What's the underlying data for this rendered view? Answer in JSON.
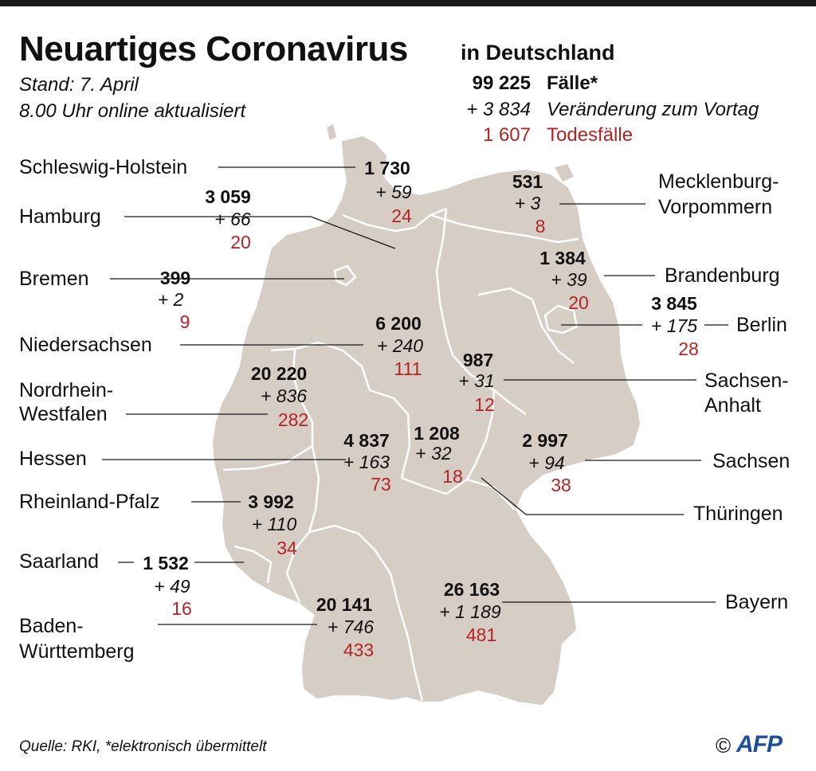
{
  "title": "Neuartiges Coronavirus",
  "subtitle": "in Deutschland",
  "stand": "Stand: 7. April",
  "updated": "8.00 Uhr online aktualisiert",
  "legend": {
    "cases_total": "99 225",
    "cases_label": "Fälle*",
    "change_total": "+ 3 834",
    "change_label": "Veränderung zum Vortag",
    "deaths_total": "1 607",
    "deaths_label": "Todesfälle"
  },
  "colors": {
    "land": "#d6cdc5",
    "border": "#ffffff",
    "deaths": "#b52424",
    "logo": "#1c4f9c"
  },
  "states": [
    {
      "id": "schleswig-holstein",
      "name": "Schleswig-Holstein",
      "cases": "1 730",
      "change": "+ 59",
      "deaths": "24"
    },
    {
      "id": "hamburg",
      "name": "Hamburg",
      "cases": "3 059",
      "change": "+ 66",
      "deaths": "20"
    },
    {
      "id": "bremen",
      "name": "Bremen",
      "cases": "399",
      "change": "+ 2",
      "deaths": "9"
    },
    {
      "id": "niedersachsen",
      "name": "Niedersachsen",
      "cases": "6 200",
      "change": "+ 240",
      "deaths": "111"
    },
    {
      "id": "nordrhein-westfalen",
      "name_line1": "Nordrhein-",
      "name_line2": "Westfalen",
      "cases": "20 220",
      "change": "+ 836",
      "deaths": "282"
    },
    {
      "id": "hessen",
      "name": "Hessen",
      "cases": "4 837",
      "change": "+ 163",
      "deaths": "73"
    },
    {
      "id": "rheinland-pfalz",
      "name": "Rheinland-Pfalz",
      "cases": "3 992",
      "change": "+ 110",
      "deaths": "34"
    },
    {
      "id": "saarland",
      "name": "Saarland",
      "cases": "1 532",
      "change": "+ 49",
      "deaths": "16"
    },
    {
      "id": "baden-wuerttemberg",
      "name_line1": "Baden-",
      "name_line2": "Württemberg",
      "cases": "20 141",
      "change": "+ 746",
      "deaths": "433"
    },
    {
      "id": "mecklenburg-vorpommern",
      "name_line1": "Mecklenburg-",
      "name_line2": "Vorpommern",
      "cases": "531",
      "change": "+ 3",
      "deaths": "8"
    },
    {
      "id": "brandenburg",
      "name": "Brandenburg",
      "cases": "1 384",
      "change": "+ 39",
      "deaths": "20"
    },
    {
      "id": "berlin",
      "name": "Berlin",
      "cases": "3 845",
      "change": "+ 175",
      "deaths": "28"
    },
    {
      "id": "sachsen-anhalt",
      "name_line1": "Sachsen-",
      "name_line2": "Anhalt",
      "cases": "987",
      "change": "+ 31",
      "deaths": "12"
    },
    {
      "id": "sachsen",
      "name": "Sachsen",
      "cases": "2 997",
      "change": "+ 94",
      "deaths": "38"
    },
    {
      "id": "thueringen",
      "name": "Thüringen",
      "cases": "1 208",
      "change": "+ 32",
      "deaths": "18"
    },
    {
      "id": "bayern",
      "name": "Bayern",
      "cases": "26 163",
      "change": "+ 1 189",
      "deaths": "481"
    }
  ],
  "source": "Quelle: RKI, *elektronisch übermittelt",
  "copyright": "©",
  "logo_text": "AFP"
}
